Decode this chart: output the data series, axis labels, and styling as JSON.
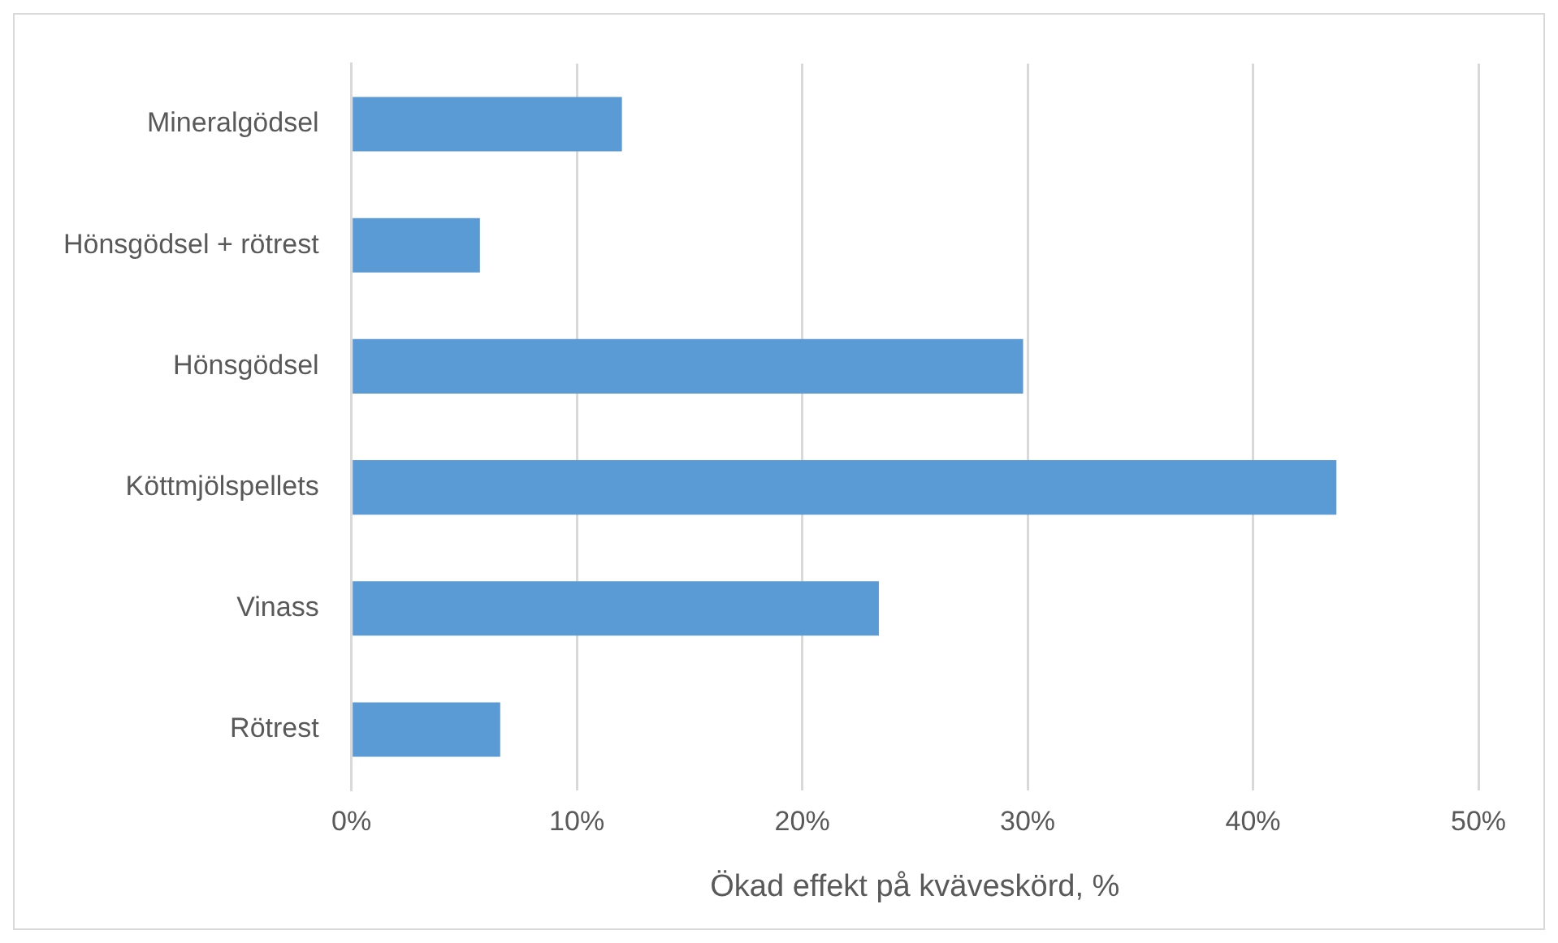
{
  "chart_data": {
    "type": "bar",
    "orientation": "horizontal",
    "xlabel": "Ökad effekt på kväveskörd, %",
    "categories": [
      "Mineralgödsel",
      "Hönsgödsel + rötrest",
      "Hönsgödsel",
      "Köttmjölspellets",
      "Vinass",
      "Rötrest"
    ],
    "values": [
      12,
      5.7,
      29.8,
      43.7,
      23.4,
      6.6
    ],
    "color": "#5b9bd5",
    "xlim": [
      0,
      50
    ],
    "xticks": [
      {
        "value": 0,
        "label": "0%"
      },
      {
        "value": 10,
        "label": "10%"
      },
      {
        "value": 20,
        "label": "20%"
      },
      {
        "value": 30,
        "label": "30%"
      },
      {
        "value": 40,
        "label": "40%"
      },
      {
        "value": 50,
        "label": "50%"
      }
    ],
    "grid": "x",
    "legend": false
  }
}
